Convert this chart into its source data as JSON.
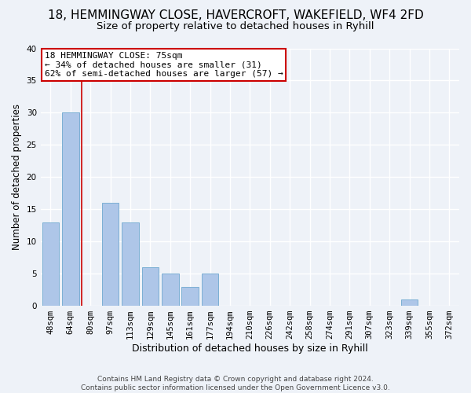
{
  "title": "18, HEMMINGWAY CLOSE, HAVERCROFT, WAKEFIELD, WF4 2FD",
  "subtitle": "Size of property relative to detached houses in Ryhill",
  "xlabel": "Distribution of detached houses by size in Ryhill",
  "ylabel": "Number of detached properties",
  "bin_labels": [
    "48sqm",
    "64sqm",
    "80sqm",
    "97sqm",
    "113sqm",
    "129sqm",
    "145sqm",
    "161sqm",
    "177sqm",
    "194sqm",
    "210sqm",
    "226sqm",
    "242sqm",
    "258sqm",
    "274sqm",
    "291sqm",
    "307sqm",
    "323sqm",
    "339sqm",
    "355sqm",
    "372sqm"
  ],
  "bar_values": [
    13,
    30,
    0,
    16,
    13,
    6,
    5,
    3,
    5,
    0,
    0,
    0,
    0,
    0,
    0,
    0,
    0,
    0,
    1,
    0,
    0
  ],
  "bar_color": "#aec6e8",
  "bar_edge_color": "#7bafd4",
  "ylim": [
    0,
    40
  ],
  "yticks": [
    0,
    5,
    10,
    15,
    20,
    25,
    30,
    35,
    40
  ],
  "property_line_x": 1.55,
  "annotation_title": "18 HEMMINGWAY CLOSE: 75sqm",
  "annotation_line1": "← 34% of detached houses are smaller (31)",
  "annotation_line2": "62% of semi-detached houses are larger (57) →",
  "annotation_box_color": "#ffffff",
  "annotation_box_edge": "#cc0000",
  "footer1": "Contains HM Land Registry data © Crown copyright and database right 2024.",
  "footer2": "Contains public sector information licensed under the Open Government Licence v3.0.",
  "background_color": "#eef2f8",
  "grid_color": "#ffffff",
  "title_fontsize": 11,
  "subtitle_fontsize": 9.5,
  "xlabel_fontsize": 9,
  "ylabel_fontsize": 8.5,
  "tick_fontsize": 7.5,
  "annotation_fontsize": 8,
  "footer_fontsize": 6.5
}
